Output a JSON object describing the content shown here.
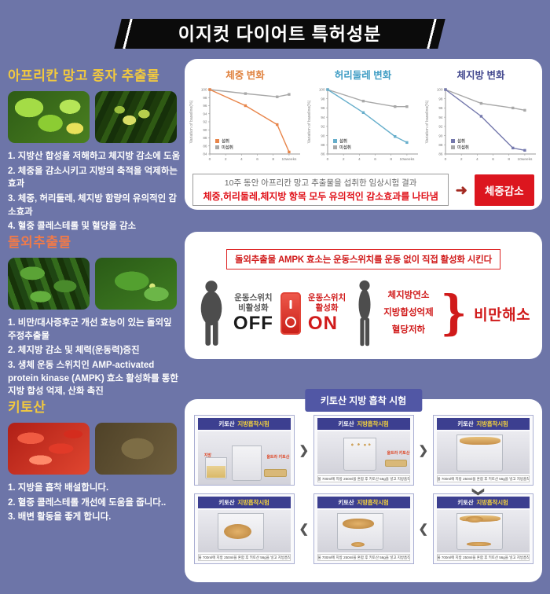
{
  "page": {
    "title": "이지컷 다이어트 특허성분"
  },
  "sections": [
    {
      "title": "아프리칸 망고 종자 추출물",
      "items": [
        "1. 지방산 합성을 저해하고 체지방 감소에 도움",
        "2. 체중을 감소시키고 지방의 축적을 억제하는 효과",
        "3. 체중, 허리둘레, 체지방 함량의 유의적인 감소효과",
        "4. 혈중 콜레스테롤 및 혈당을 감소"
      ]
    },
    {
      "title": "돌외추출물",
      "items": [
        "1. 비만/대사증후군 개선 효능이 있는 돌외잎 주정추출물",
        "2. 체지방 감소 및 체력(운동력)증진",
        "3. 생체 운동 스위치인 AMP-activated protein kinase (AMPK) 효소 활성화를 통한 지방 합성 억제, 산화 촉진"
      ]
    },
    {
      "title": "키토산",
      "items": [
        "1. 지방을 흡착 배설합니다.",
        "2. 혈중 콜레스테롤 개선에 도움을 줍니다..",
        "3. 배변 활동을 좋게 합니다."
      ]
    }
  ],
  "chart_data": [
    {
      "type": "line",
      "title": "체중 변화",
      "title_color": "#e0823f",
      "color": "#e8854a",
      "ylabel": "Variation of baseline(%)",
      "x": [
        0,
        4.5,
        8.5,
        10
      ],
      "xlim": [
        0,
        11
      ],
      "xticks": [
        0,
        2,
        4,
        6,
        8,
        10
      ],
      "xticklabels": [
        "0",
        "2",
        "4",
        "6",
        "8",
        "10weeks"
      ],
      "ylim": [
        84,
        100
      ],
      "series": [
        {
          "name": "섭취",
          "values": [
            100,
            96,
            91.3,
            84.5
          ]
        },
        {
          "name": "미섭취",
          "values": [
            100,
            99,
            98.2,
            98.8
          ]
        }
      ],
      "legend_position": "lower-left",
      "grid": false
    },
    {
      "type": "line",
      "title": "허리둘레 변화",
      "title_color": "#3f9dc4",
      "color": "#66aecb",
      "ylabel": "Variation of baseline(%)",
      "x": [
        0,
        4.5,
        8.5,
        10
      ],
      "xlim": [
        0,
        11
      ],
      "xticks": [
        0,
        2,
        4,
        6,
        8,
        10
      ],
      "xticklabels": [
        "0",
        "2",
        "4",
        "6",
        "8",
        "10weeks"
      ],
      "ylim": [
        86,
        100
      ],
      "series": [
        {
          "name": "섭취",
          "values": [
            100,
            95,
            89.8,
            88.5
          ]
        },
        {
          "name": "미섭취",
          "values": [
            100,
            97.5,
            96.3,
            96.3
          ]
        }
      ],
      "legend_position": "lower-left",
      "grid": false
    },
    {
      "type": "line",
      "title": "체지방 변화",
      "title_color": "#44498f",
      "color": "#7478ac",
      "ylabel": "Variation of baseline(%)",
      "x": [
        0,
        4.5,
        8.5,
        10
      ],
      "xlim": [
        0,
        11
      ],
      "xticks": [
        0,
        2,
        4,
        6,
        8,
        10
      ],
      "xticklabels": [
        "0",
        "2",
        "4",
        "6",
        "8",
        "10weeks"
      ],
      "ylim": [
        86,
        100
      ],
      "series": [
        {
          "name": "섭취",
          "values": [
            100,
            94.2,
            87.3,
            86.8
          ]
        },
        {
          "name": "미섭취",
          "values": [
            100,
            97,
            96,
            95.5
          ]
        }
      ],
      "legend_position": "lower-left",
      "grid": false
    }
  ],
  "panel1": {
    "conclusion_line1": "10주 동안 아프리칸 망고 추출물을 섭취한 임상시험 결과",
    "conclusion_line2": "체중,허리둘레,체지방 항목 모두 유의적인 감소효과를 나타냄",
    "arrow_icon": "➜",
    "result_badge": "체중감소"
  },
  "panel2": {
    "headline": "돌외추출물 AMPK 효소는 운동스위치를 운동 없이 직접 활성화 시킨다",
    "off_label_line1": "운동스위치",
    "off_label_line2": "비활성화",
    "off_text": "OFF",
    "on_label_line1": "운동스위치",
    "on_label_line2": "활성화",
    "on_text": "ON",
    "effects": [
      "체지방연소",
      "지방합성억제",
      "혈당저하"
    ],
    "brace": "}",
    "result": "비만해소"
  },
  "panel3": {
    "tab": "키토산 지방 흡착 시험",
    "card_title_left": "키토산",
    "card_title_right": "지방흡착시험",
    "label_fat": "지방",
    "label_chitosan": "울트라 키토산",
    "caption": "물 700ml에 지방 250ml을 혼합 후 키토산 56g을 넣고 지방흡착 관찰",
    "right_chevron": "❯",
    "left_chevron": "❮",
    "down_chevron": "❯"
  }
}
